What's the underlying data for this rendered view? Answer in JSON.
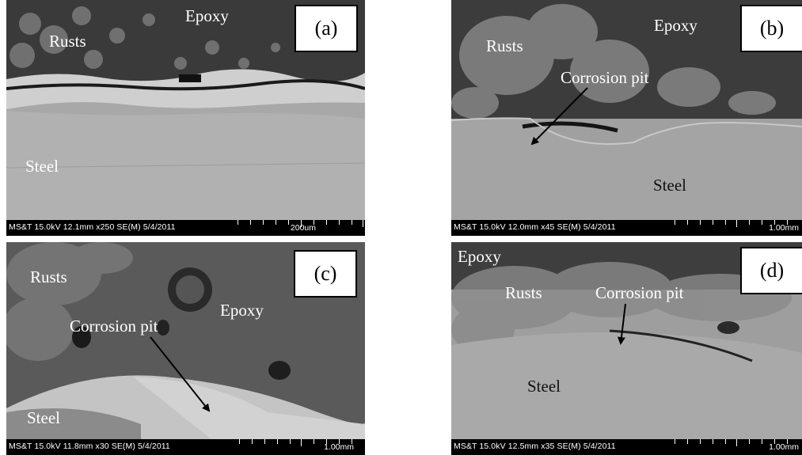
{
  "panels": [
    {
      "id": "a",
      "tag": "(a)",
      "labels": {
        "epoxy": "Epoxy",
        "rusts": "Rusts",
        "steel": "Steel"
      },
      "info": "MS&T 15.0kV 12.1mm x250 SE(M) 5/4/2011",
      "scale": "200um"
    },
    {
      "id": "b",
      "tag": "(b)",
      "labels": {
        "epoxy": "Epoxy",
        "rusts": "Rusts",
        "pit": "Corrosion pit",
        "steel": "Steel"
      },
      "info": "MS&T 15.0kV 12.0mm x45 SE(M) 5/4/2011",
      "scale": "1.00mm"
    },
    {
      "id": "c",
      "tag": "(c)",
      "labels": {
        "rusts": "Rusts",
        "epoxy": "Epoxy",
        "pit": "Corrosion pit",
        "steel": "Steel"
      },
      "info": "MS&T 15.0kV 11.8mm x30 SE(M) 5/4/2011",
      "scale": "1.00mm"
    },
    {
      "id": "d",
      "tag": "(d)",
      "labels": {
        "epoxy": "Epoxy",
        "rusts": "Rusts",
        "pit": "Corrosion pit",
        "steel": "Steel"
      },
      "info": "MS&T 15.0kV 12.5mm x35 SE(M) 5/4/2011",
      "scale": "1.00mm"
    }
  ],
  "colors": {
    "epoxy": "#3c3c3c",
    "rust": "#7a7a7a",
    "steel": "#a9a9a9",
    "text": "#ffffff"
  }
}
